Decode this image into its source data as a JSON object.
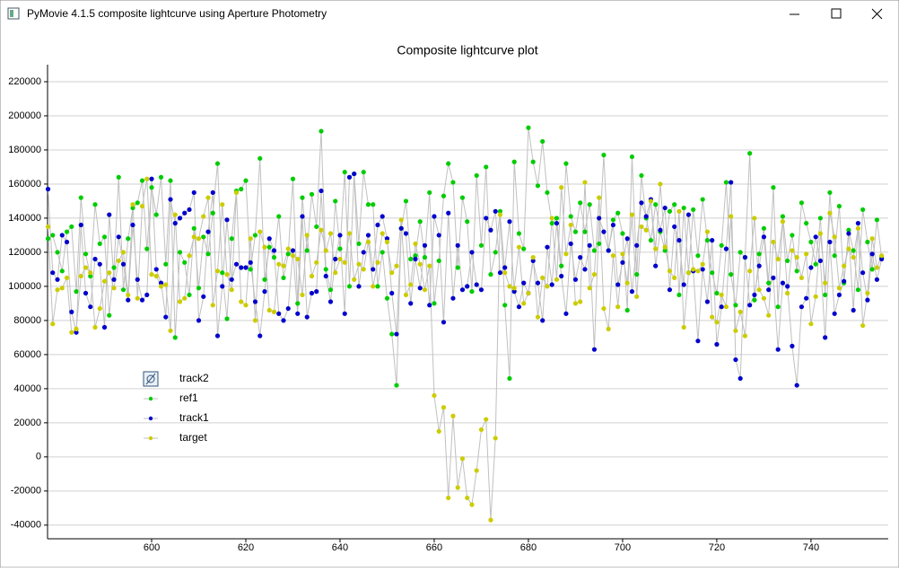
{
  "window": {
    "title": "PyMovie 4.1.5 composite lightcurve using Aperture Photometry"
  },
  "chart_data": {
    "type": "line",
    "title": "Composite lightcurve plot",
    "x": [
      578,
      579,
      580,
      581,
      582,
      583,
      584,
      585,
      586,
      587,
      588,
      589,
      590,
      591,
      592,
      593,
      594,
      595,
      596,
      597,
      598,
      599,
      600,
      601,
      602,
      603,
      604,
      605,
      606,
      607,
      608,
      609,
      610,
      611,
      612,
      613,
      614,
      615,
      616,
      617,
      618,
      619,
      620,
      621,
      622,
      623,
      624,
      625,
      626,
      627,
      628,
      629,
      630,
      631,
      632,
      633,
      634,
      635,
      636,
      637,
      638,
      639,
      640,
      641,
      642,
      643,
      644,
      645,
      646,
      647,
      648,
      649,
      650,
      651,
      652,
      653,
      654,
      655,
      656,
      657,
      658,
      659,
      660,
      661,
      662,
      663,
      664,
      665,
      666,
      667,
      668,
      669,
      670,
      671,
      672,
      673,
      674,
      675,
      676,
      677,
      678,
      679,
      680,
      681,
      682,
      683,
      684,
      685,
      686,
      687,
      688,
      689,
      690,
      691,
      692,
      693,
      694,
      695,
      696,
      697,
      698,
      699,
      700,
      701,
      702,
      703,
      704,
      705,
      706,
      707,
      708,
      709,
      710,
      711,
      712,
      713,
      714,
      715,
      716,
      717,
      718,
      719,
      720,
      721,
      722,
      723,
      724,
      725,
      726,
      727,
      728,
      729,
      730,
      731,
      732,
      733,
      734,
      735,
      736,
      737,
      738,
      739,
      740,
      741,
      742,
      743,
      744,
      745,
      746,
      747,
      748,
      749,
      750,
      751,
      752,
      753,
      754,
      755
    ],
    "series": [
      {
        "name": "ref1",
        "color": "#00cc00",
        "values": [
          128000,
          130000,
          120000,
          109000,
          132000,
          135000,
          97000,
          152000,
          119000,
          106000,
          148000,
          125000,
          129000,
          83000,
          111000,
          164000,
          98000,
          128000,
          146000,
          149000,
          162000,
          122000,
          158000,
          142000,
          164000,
          113000,
          162000,
          70000,
          120000,
          114000,
          95000,
          134000,
          99000,
          129000,
          119000,
          143000,
          172000,
          108000,
          81000,
          128000,
          156000,
          157000,
          162000,
          110000,
          130000,
          175000,
          104000,
          123000,
          117000,
          141000,
          105000,
          119000,
          163000,
          90000,
          152000,
          121000,
          154000,
          135000,
          191000,
          110000,
          98000,
          150000,
          122000,
          167000,
          100000,
          166000,
          125000,
          167000,
          148000,
          148000,
          100000,
          120000,
          93000,
          72000,
          42000,
          134000,
          150000,
          116000,
          118000,
          138000,
          117000,
          155000,
          90000,
          115000,
          153000,
          172000,
          161000,
          111000,
          152000,
          138000,
          97000,
          165000,
          124000,
          170000,
          107000,
          120000,
          144000,
          89000,
          46000,
          173000,
          131000,
          122000,
          193000,
          173000,
          159000,
          185000,
          155000,
          137000,
          140000,
          112000,
          172000,
          141000,
          132000,
          149000,
          132000,
          148000,
          121000,
          125000,
          177000,
          121000,
          139000,
          143000,
          131000,
          86000,
          176000,
          107000,
          165000,
          140000,
          127000,
          148000,
          132000,
          121000,
          144000,
          148000,
          95000,
          146000,
          108000,
          145000,
          118000,
          151000,
          127000,
          108000,
          96000,
          124000,
          161000,
          107000,
          89000,
          120000,
          117000,
          178000,
          92000,
          119000,
          134000,
          102000,
          158000,
          88000,
          141000,
          115000,
          130000,
          109000,
          149000,
          137000,
          126000,
          113000,
          140000,
          95000,
          155000,
          118000,
          147000,
          102000,
          133000,
          121000,
          98000,
          145000,
          126000,
          110000,
          139000,
          117000
        ]
      },
      {
        "name": "track1",
        "color": "#0000cc",
        "values": [
          157000,
          108000,
          104000,
          130000,
          126000,
          85000,
          73000,
          136000,
          96000,
          88000,
          116000,
          113000,
          76000,
          142000,
          104000,
          129000,
          113000,
          92000,
          136000,
          104000,
          92000,
          95000,
          163000,
          110000,
          102000,
          82000,
          151000,
          137000,
          140000,
          143000,
          145000,
          155000,
          80000,
          94000,
          132000,
          155000,
          71000,
          100000,
          139000,
          104000,
          113000,
          111000,
          111000,
          114000,
          91000,
          71000,
          97000,
          128000,
          121000,
          84000,
          80000,
          87000,
          121000,
          84000,
          141000,
          82000,
          96000,
          97000,
          156000,
          106000,
          91000,
          116000,
          130000,
          84000,
          164000,
          166000,
          100000,
          120000,
          130000,
          110000,
          136000,
          141000,
          128000,
          96000,
          72000,
          134000,
          131000,
          90000,
          116000,
          99000,
          124000,
          89000,
          141000,
          130000,
          79000,
          143000,
          93000,
          124000,
          98000,
          100000,
          120000,
          101000,
          98000,
          140000,
          133000,
          144000,
          108000,
          111000,
          138000,
          97000,
          88000,
          102000,
          96000,
          115000,
          102000,
          80000,
          123000,
          101000,
          137000,
          106000,
          84000,
          125000,
          104000,
          117000,
          110000,
          124000,
          63000,
          140000,
          132000,
          121000,
          136000,
          101000,
          114000,
          128000,
          97000,
          124000,
          149000,
          141000,
          151000,
          112000,
          133000,
          146000,
          98000,
          135000,
          127000,
          101000,
          142000,
          109000,
          68000,
          110000,
          91000,
          127000,
          66000,
          88000,
          122000,
          161000,
          57000,
          46000,
          117000,
          89000,
          95000,
          112000,
          129000,
          98000,
          105000,
          63000,
          102000,
          100000,
          65000,
          42000,
          88000,
          93000,
          111000,
          129000,
          115000,
          70000,
          126000,
          84000,
          95000,
          103000,
          131000,
          86000,
          137000,
          108000,
          92000,
          119000,
          104000,
          116000
        ]
      },
      {
        "name": "target",
        "color": "#cccc00",
        "values": [
          135000,
          78000,
          98000,
          99000,
          105000,
          73000,
          75000,
          106000,
          111000,
          108000,
          76000,
          87000,
          103000,
          108000,
          99000,
          115000,
          120000,
          95000,
          148000,
          93000,
          147000,
          163000,
          107000,
          106000,
          100000,
          101000,
          74000,
          142000,
          91000,
          93000,
          118000,
          129000,
          128000,
          141000,
          152000,
          89000,
          109000,
          148000,
          107000,
          98000,
          155000,
          91000,
          89000,
          128000,
          80000,
          132000,
          123000,
          86000,
          85000,
          113000,
          112000,
          122000,
          118000,
          116000,
          95000,
          130000,
          106000,
          114000,
          133000,
          121000,
          131000,
          108000,
          116000,
          114000,
          131000,
          104000,
          113000,
          110000,
          126000,
          100000,
          114000,
          131000,
          126000,
          108000,
          112000,
          139000,
          95000,
          101000,
          125000,
          113000,
          98000,
          112000,
          36000,
          15000,
          29000,
          -24000,
          24000,
          -18000,
          -1000,
          -24000,
          -28000,
          -8000,
          16000,
          22000,
          -37000,
          11000,
          142000,
          108000,
          100000,
          99000,
          123000,
          90000,
          96000,
          117000,
          82000,
          105000,
          100000,
          140000,
          104000,
          158000,
          119000,
          136000,
          90000,
          91000,
          161000,
          99000,
          107000,
          152000,
          87000,
          75000,
          118000,
          88000,
          119000,
          102000,
          142000,
          94000,
          135000,
          133000,
          150000,
          122000,
          160000,
          123000,
          109000,
          105000,
          144000,
          76000,
          108000,
          110000,
          109000,
          113000,
          132000,
          82000,
          79000,
          95000,
          88000,
          141000,
          74000,
          85000,
          71000,
          109000,
          140000,
          98000,
          93000,
          83000,
          126000,
          116000,
          138000,
          96000,
          121000,
          117000,
          105000,
          119000,
          78000,
          94000,
          131000,
          102000,
          143000,
          129000,
          99000,
          112000,
          122000,
          117000,
          134000,
          77000,
          96000,
          128000,
          111000,
          118000
        ]
      }
    ],
    "hidden_legend_entries": [
      "track2"
    ],
    "line_color": "#c0c0c0",
    "xlim": [
      577.9,
      756.4
    ],
    "ylim": [
      -48000,
      230000
    ],
    "xticks": [
      600,
      620,
      640,
      660,
      680,
      700,
      720,
      740
    ],
    "yticks": [
      -40000,
      -20000,
      0,
      20000,
      40000,
      60000,
      80000,
      100000,
      120000,
      140000,
      160000,
      180000,
      200000,
      220000
    ],
    "grid": true
  }
}
